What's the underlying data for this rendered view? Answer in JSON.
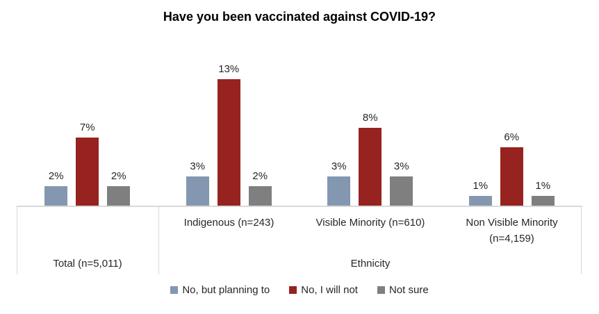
{
  "chart_data": {
    "type": "bar",
    "title": "Have you been vaccinated against COVID-19?",
    "categories": [
      "Total (n=5,011)",
      "Indigenous (n=243)",
      "Visible Minority (n=610)",
      "Non Visible Minority (n=4,159)"
    ],
    "series": [
      {
        "name": "No, but planning to",
        "color": "#8497B0",
        "values": [
          2,
          3,
          3,
          1
        ]
      },
      {
        "name": "No, I will not",
        "color": "#96231F",
        "values": [
          7,
          13,
          8,
          6
        ]
      },
      {
        "name": "Not sure",
        "color": "#7F7F7F",
        "values": [
          2,
          2,
          3,
          1
        ]
      }
    ],
    "value_suffix": "%",
    "ylim": [
      0,
      14
    ],
    "grid": false,
    "data_labels": true,
    "legend_position": "bottom",
    "axis_tier2_group_label": "Ethnicity"
  },
  "colors": {
    "axis_line": "#D9D9D9",
    "label_text": "#262626",
    "title_text": "#000000"
  }
}
